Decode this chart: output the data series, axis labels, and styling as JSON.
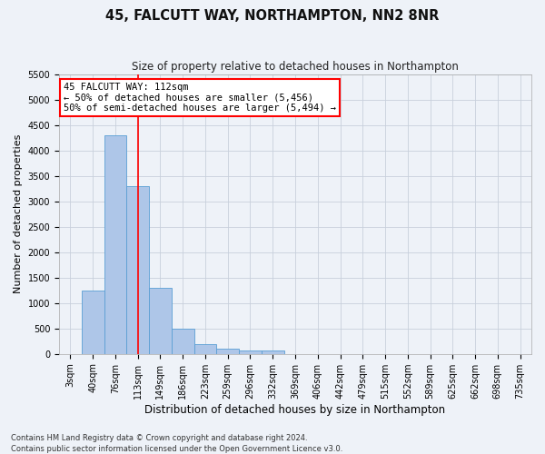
{
  "title": "45, FALCUTT WAY, NORTHAMPTON, NN2 8NR",
  "subtitle": "Size of property relative to detached houses in Northampton",
  "xlabel": "Distribution of detached houses by size in Northampton",
  "ylabel": "Number of detached properties",
  "footnote1": "Contains HM Land Registry data © Crown copyright and database right 2024.",
  "footnote2": "Contains public sector information licensed under the Open Government Licence v3.0.",
  "bar_labels": [
    "3sqm",
    "40sqm",
    "76sqm",
    "113sqm",
    "149sqm",
    "186sqm",
    "223sqm",
    "259sqm",
    "296sqm",
    "332sqm",
    "369sqm",
    "406sqm",
    "442sqm",
    "479sqm",
    "515sqm",
    "552sqm",
    "589sqm",
    "625sqm",
    "662sqm",
    "698sqm",
    "735sqm"
  ],
  "bar_values": [
    0,
    1250,
    4300,
    3300,
    1300,
    500,
    200,
    100,
    75,
    75,
    0,
    0,
    0,
    0,
    0,
    0,
    0,
    0,
    0,
    0,
    0
  ],
  "bar_color": "#aec6e8",
  "bar_edge_color": "#5a9fd4",
  "red_line_index": 3,
  "ylim": [
    0,
    5500
  ],
  "yticks": [
    0,
    500,
    1000,
    1500,
    2000,
    2500,
    3000,
    3500,
    4000,
    4500,
    5000,
    5500
  ],
  "annotation_title": "45 FALCUTT WAY: 112sqm",
  "annotation_line1": "← 50% of detached houses are smaller (5,456)",
  "annotation_line2": "50% of semi-detached houses are larger (5,494) →",
  "annotation_box_color": "white",
  "annotation_box_edge": "red",
  "grid_color": "#c8d0dc",
  "background_color": "#eef2f8",
  "title_fontsize": 10.5,
  "subtitle_fontsize": 8.5,
  "ylabel_fontsize": 8,
  "xlabel_fontsize": 8.5,
  "tick_fontsize": 7,
  "annot_fontsize": 7.5,
  "footnote_fontsize": 6
}
